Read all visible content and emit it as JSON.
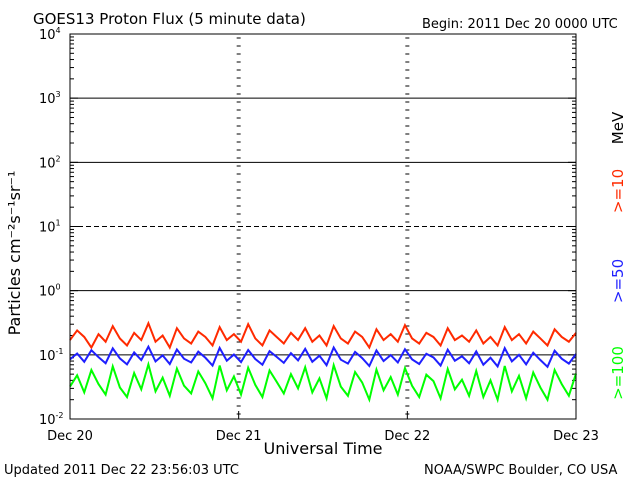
{
  "header": {
    "title": "GOES13 Proton Flux (5 minute data)",
    "begin": "Begin: 2011 Dec 20 0000 UTC"
  },
  "footer": {
    "updated": "Updated 2011 Dec 22 23:56:03 UTC",
    "source": "NOAA/SWPC Boulder, CO USA"
  },
  "chart_data": {
    "type": "line",
    "title": "GOES13 Proton Flux (5 minute data)",
    "xlabel": "Universal Time",
    "ylabel": "Particles cm⁻²s⁻¹sr⁻¹",
    "y_scale": "log",
    "ylim": [
      0.01,
      10000
    ],
    "x_ticks": [
      "Dec 20",
      "Dec 21",
      "Dec 22",
      "Dec 23"
    ],
    "y_ticks": [
      {
        "base": "10",
        "exp": "-2",
        "value": 0.01
      },
      {
        "base": "10",
        "exp": "-1",
        "value": 0.1
      },
      {
        "base": "10",
        "exp": "0",
        "value": 1
      },
      {
        "base": "10",
        "exp": "1",
        "value": 10
      },
      {
        "base": "10",
        "exp": "2",
        "value": 100
      },
      {
        "base": "10",
        "exp": "3",
        "value": 1000
      },
      {
        "base": "10",
        "exp": "4",
        "value": 10000
      }
    ],
    "reference_lines": [
      {
        "value": 1000,
        "style": "solid"
      },
      {
        "value": 100,
        "style": "solid"
      },
      {
        "value": 10,
        "style": "dashed"
      },
      {
        "value": 1,
        "style": "solid"
      },
      {
        "value": 0.1,
        "style": "solid"
      }
    ],
    "grid": false,
    "legend_position": "right",
    "legend_unit": "MeV",
    "series": [
      {
        "name": ">=10",
        "color": "#ff2a00",
        "values": [
          0.17,
          0.24,
          0.19,
          0.13,
          0.21,
          0.16,
          0.28,
          0.18,
          0.14,
          0.22,
          0.17,
          0.31,
          0.16,
          0.2,
          0.13,
          0.26,
          0.18,
          0.15,
          0.23,
          0.19,
          0.14,
          0.27,
          0.17,
          0.21,
          0.16,
          0.3,
          0.18,
          0.14,
          0.24,
          0.19,
          0.15,
          0.22,
          0.17,
          0.26,
          0.16,
          0.2,
          0.14,
          0.28,
          0.18,
          0.15,
          0.23,
          0.19,
          0.13,
          0.25,
          0.17,
          0.21,
          0.16,
          0.29,
          0.18,
          0.15,
          0.22,
          0.19,
          0.14,
          0.26,
          0.17,
          0.2,
          0.16,
          0.24,
          0.15,
          0.19,
          0.14,
          0.27,
          0.17,
          0.21,
          0.15,
          0.23,
          0.18,
          0.14,
          0.25,
          0.19,
          0.16,
          0.22
        ]
      },
      {
        "name": ">=50",
        "color": "#1f1fff",
        "values": [
          0.085,
          0.105,
          0.078,
          0.118,
          0.092,
          0.074,
          0.126,
          0.088,
          0.071,
          0.109,
          0.083,
          0.134,
          0.079,
          0.098,
          0.072,
          0.121,
          0.087,
          0.076,
          0.112,
          0.09,
          0.068,
          0.128,
          0.081,
          0.101,
          0.077,
          0.119,
          0.086,
          0.07,
          0.114,
          0.093,
          0.075,
          0.106,
          0.082,
          0.124,
          0.078,
          0.097,
          0.069,
          0.13,
          0.084,
          0.073,
          0.111,
          0.089,
          0.067,
          0.117,
          0.08,
          0.099,
          0.076,
          0.122,
          0.085,
          0.072,
          0.104,
          0.091,
          0.068,
          0.12,
          0.081,
          0.095,
          0.074,
          0.113,
          0.07,
          0.09,
          0.066,
          0.127,
          0.079,
          0.1,
          0.071,
          0.108,
          0.083,
          0.065,
          0.116,
          0.087,
          0.073,
          0.103
        ]
      },
      {
        "name": ">=100",
        "color": "#00ff00",
        "values": [
          0.032,
          0.048,
          0.026,
          0.058,
          0.035,
          0.024,
          0.066,
          0.031,
          0.022,
          0.052,
          0.029,
          0.071,
          0.027,
          0.044,
          0.023,
          0.061,
          0.033,
          0.025,
          0.055,
          0.036,
          0.021,
          0.068,
          0.028,
          0.046,
          0.024,
          0.063,
          0.034,
          0.022,
          0.057,
          0.038,
          0.025,
          0.05,
          0.03,
          0.064,
          0.026,
          0.043,
          0.021,
          0.069,
          0.032,
          0.023,
          0.054,
          0.037,
          0.02,
          0.059,
          0.028,
          0.045,
          0.024,
          0.062,
          0.033,
          0.022,
          0.049,
          0.039,
          0.021,
          0.06,
          0.029,
          0.041,
          0.023,
          0.056,
          0.022,
          0.04,
          0.02,
          0.067,
          0.027,
          0.047,
          0.021,
          0.053,
          0.031,
          0.02,
          0.058,
          0.035,
          0.023,
          0.051
        ]
      }
    ]
  }
}
